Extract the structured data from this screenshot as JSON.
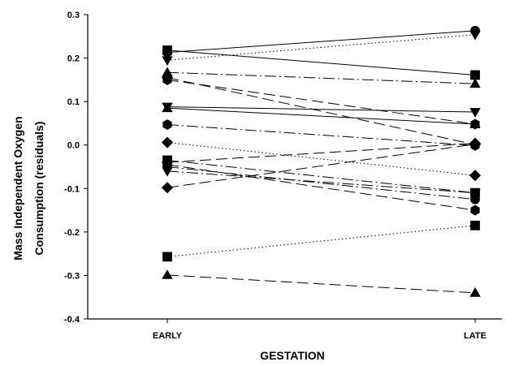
{
  "chart_data": {
    "type": "line",
    "title": "",
    "xlabel": "GESTATION",
    "ylabel_lines": [
      "Mass Independent Oxygen",
      "Consumption (residuals)"
    ],
    "categories": [
      "EARLY",
      "LATE"
    ],
    "ylim": [
      -0.4,
      0.3
    ],
    "yticks": [
      "-0.4",
      "-0.3",
      "-0.2",
      "-0.1",
      "0.0",
      "0.1",
      "0.2",
      "0.3"
    ],
    "grid": false,
    "legend": "none",
    "series": [
      {
        "marker": "circle",
        "line": "solid",
        "values": [
          0.213,
          0.263
        ]
      },
      {
        "marker": "square",
        "line": "solid",
        "values": [
          0.218,
          0.161
        ]
      },
      {
        "marker": "triangle-down",
        "line": "dotted",
        "values": [
          0.195,
          0.254
        ]
      },
      {
        "marker": "triangle",
        "line": "dash-dot",
        "values": [
          0.167,
          0.141
        ]
      },
      {
        "marker": "hexagon",
        "line": "dashed",
        "values": [
          0.15,
          0.048
        ]
      },
      {
        "marker": "diamond",
        "line": "dashed",
        "values": [
          0.155,
          0.001
        ]
      },
      {
        "marker": "triangle-down",
        "line": "solid",
        "values": [
          0.088,
          0.076
        ]
      },
      {
        "marker": "triangle",
        "line": "solid",
        "values": [
          0.085,
          0.048
        ]
      },
      {
        "marker": "hexagon",
        "line": "dash-dot",
        "values": [
          0.047,
          -0.001
        ]
      },
      {
        "marker": "diamond",
        "line": "dotted",
        "values": [
          0.006,
          -0.07
        ]
      },
      {
        "marker": "square",
        "line": "dash-dot",
        "values": [
          -0.035,
          -0.11
        ]
      },
      {
        "marker": "hexagon",
        "line": "dashed",
        "values": [
          -0.045,
          -0.15
        ]
      },
      {
        "marker": "circle",
        "line": "dash-dot",
        "values": [
          -0.05,
          -0.125
        ]
      },
      {
        "marker": "triangle-down",
        "line": "dash-dot",
        "values": [
          -0.06,
          -0.11
        ]
      },
      {
        "marker": "diamond",
        "line": "dashed",
        "values": [
          -0.04,
          0.004
        ]
      },
      {
        "marker": "diamond",
        "line": "dashed",
        "values": [
          -0.098,
          0.002
        ]
      },
      {
        "marker": "square",
        "line": "dotted",
        "values": [
          -0.257,
          -0.185
        ]
      },
      {
        "marker": "triangle",
        "line": "dashed",
        "values": [
          -0.299,
          -0.34
        ]
      }
    ]
  }
}
